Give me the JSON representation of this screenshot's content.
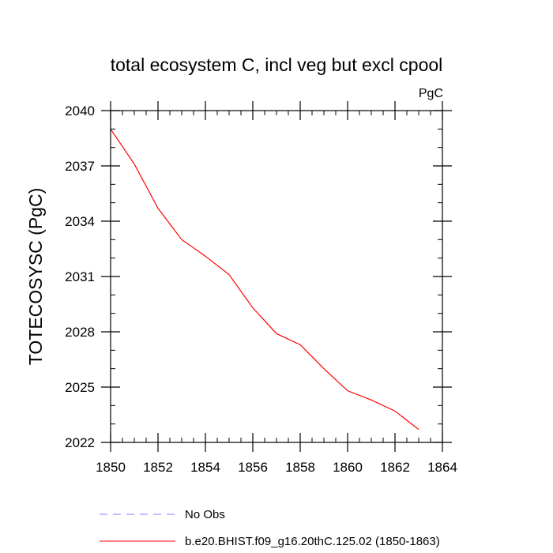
{
  "chart_data": {
    "type": "line",
    "title": "total ecosystem C, incl veg but excl cpool",
    "units_label": "PgC",
    "ylabel": "TOTECOSYSC  (PgC)",
    "xlabel": "",
    "xlim": [
      1850,
      1864
    ],
    "ylim": [
      2022,
      2040
    ],
    "xticks": [
      1850,
      1852,
      1854,
      1856,
      1858,
      1860,
      1862,
      1864
    ],
    "yticks": [
      2022,
      2025,
      2028,
      2031,
      2034,
      2037,
      2040
    ],
    "grid": false,
    "legend_position": "bottom",
    "series": [
      {
        "name": "No Obs",
        "color": "#8080ff",
        "style": "dashed",
        "x": [],
        "y": []
      },
      {
        "name": "b.e20.BHIST.f09_g16.20thC.125.02 (1850-1863)",
        "color": "#ff0000",
        "style": "solid",
        "x": [
          1850,
          1851,
          1852,
          1853,
          1854,
          1855,
          1856,
          1857,
          1858,
          1859,
          1860,
          1861,
          1862,
          1863
        ],
        "y": [
          2039.0,
          2037.1,
          2034.7,
          2033.0,
          2032.1,
          2031.1,
          2029.3,
          2027.9,
          2027.3,
          2026.0,
          2024.8,
          2024.3,
          2023.7,
          2022.7
        ]
      }
    ]
  }
}
